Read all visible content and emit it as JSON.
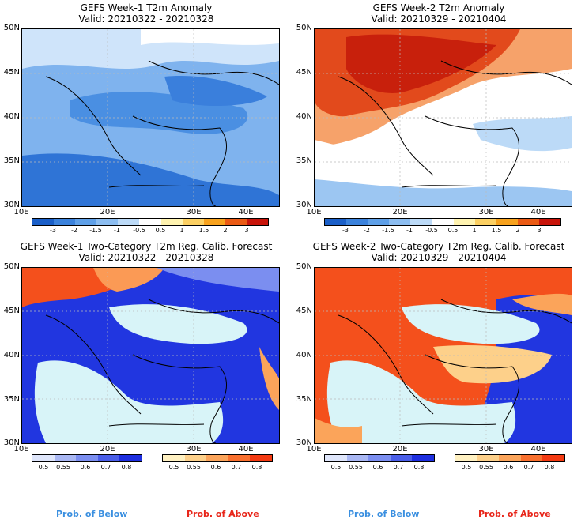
{
  "panels": [
    {
      "title_line1": "GEFS Week-1 T2m Anomaly",
      "title_line2": "Valid: 20210322 - 20210328"
    },
    {
      "title_line1": "GEFS Week-2 T2m Anomaly",
      "title_line2": "Valid: 20210329 - 20210404"
    },
    {
      "title_line1": "GEFS Week-1 Two-Category T2m Reg. Calib. Forecast",
      "title_line2": "Valid: 20210322 - 20210328"
    },
    {
      "title_line1": "GEFS Week-2 Two-Category T2m Reg. Calib. Forecast",
      "title_line2": "Valid: 20210329 - 20210404"
    }
  ],
  "axes": {
    "lat_labels": [
      "50N",
      "45N",
      "40N",
      "35N",
      "30N"
    ],
    "lon_labels": [
      "10E",
      "20E",
      "30E",
      "40E"
    ]
  },
  "anomaly_scale": {
    "labels": [
      "-3",
      "-2",
      "-1.5",
      "-1",
      "-0.5",
      "0.5",
      "1",
      "1.5",
      "2",
      "3"
    ],
    "colors": [
      "#1a5fc8",
      "#3b82dc",
      "#5fa0e8",
      "#8cbdf0",
      "#bcdaf7",
      "#ffffff",
      "#fff3b0",
      "#fcd063",
      "#f7a21e",
      "#ea5a14",
      "#c8140a"
    ]
  },
  "prob_below_scale": {
    "labels": [
      "0.5",
      "0.55",
      "0.6",
      "0.7",
      "0.8"
    ],
    "colors": [
      "#dfe6fb",
      "#a9b7f3",
      "#7b8ef0",
      "#4a5ee8",
      "#1e2fe0"
    ]
  },
  "prob_above_scale": {
    "labels": [
      "0.5",
      "0.55",
      "0.6",
      "0.7",
      "0.8"
    ],
    "colors": [
      "#fff1c2",
      "#fdd08a",
      "#fba45a",
      "#f9702e",
      "#f43a12"
    ]
  },
  "legend_text": {
    "below": "Prob. of Below",
    "above": "Prob. of Above"
  }
}
